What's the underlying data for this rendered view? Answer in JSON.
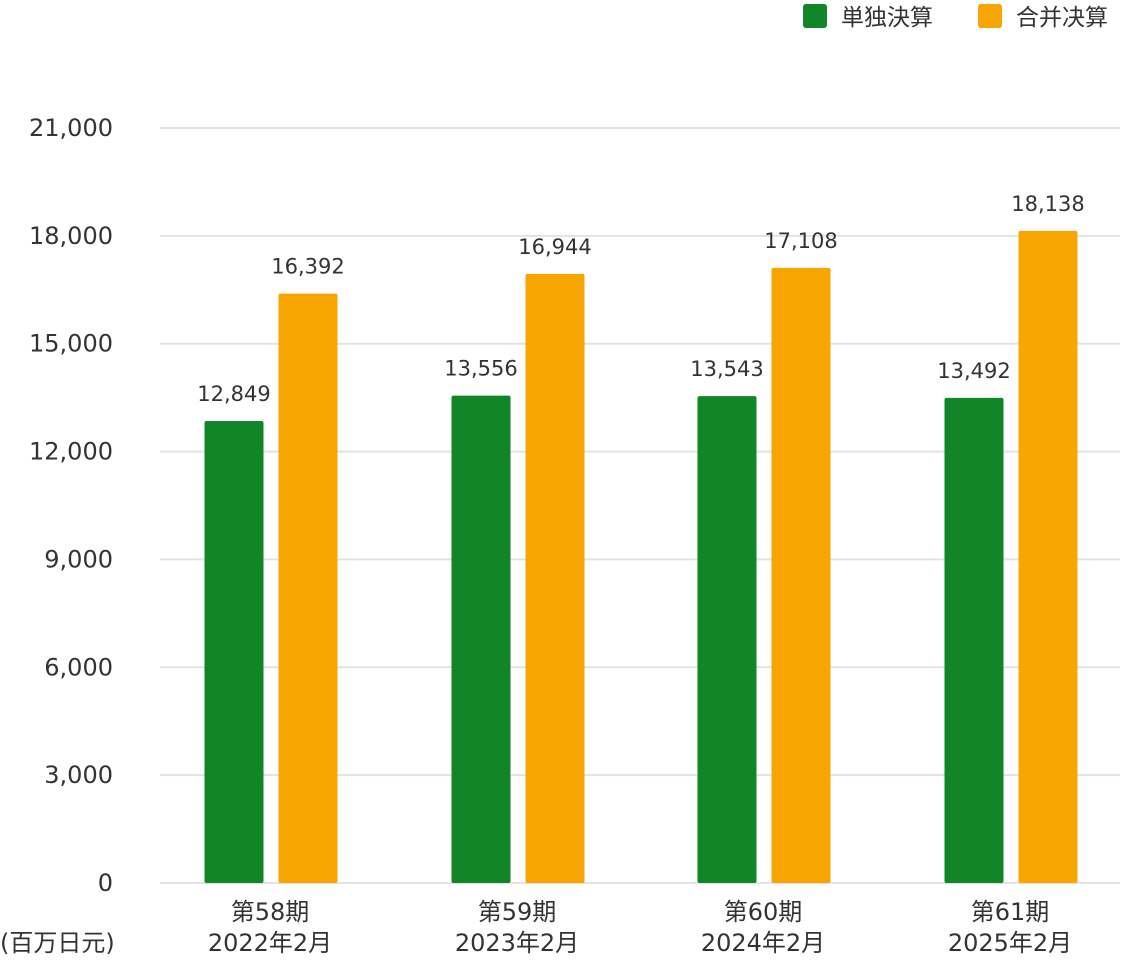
{
  "chart_data": {
    "type": "bar",
    "categories": [
      [
        "第58期",
        "2022年2月"
      ],
      [
        "第59期",
        "2023年2月"
      ],
      [
        "第60期",
        "2024年2月"
      ],
      [
        "第61期",
        "2025年2月"
      ]
    ],
    "series": [
      {
        "name": "単独決算",
        "color": "#118528",
        "values": [
          12849,
          13556,
          13543,
          13492
        ],
        "labels": [
          "12,849",
          "13,556",
          "13,543",
          "13,492"
        ]
      },
      {
        "name": "合并决算",
        "color": "#f7a500",
        "values": [
          16392,
          16944,
          17108,
          18138
        ],
        "labels": [
          "16,392",
          "16,944",
          "17,108",
          "18,138"
        ]
      }
    ],
    "yticks": [
      0,
      3000,
      6000,
      9000,
      12000,
      15000,
      18000,
      21000
    ],
    "ytick_labels": [
      "0",
      "3,000",
      "6,000",
      "9,000",
      "12,000",
      "15,000",
      "18,000",
      "21,000"
    ],
    "ylim": [
      0,
      21000
    ],
    "unit": "(百万日元)",
    "grid": true,
    "legend_position": "top-right",
    "title": "",
    "xlabel": "",
    "ylabel": ""
  }
}
